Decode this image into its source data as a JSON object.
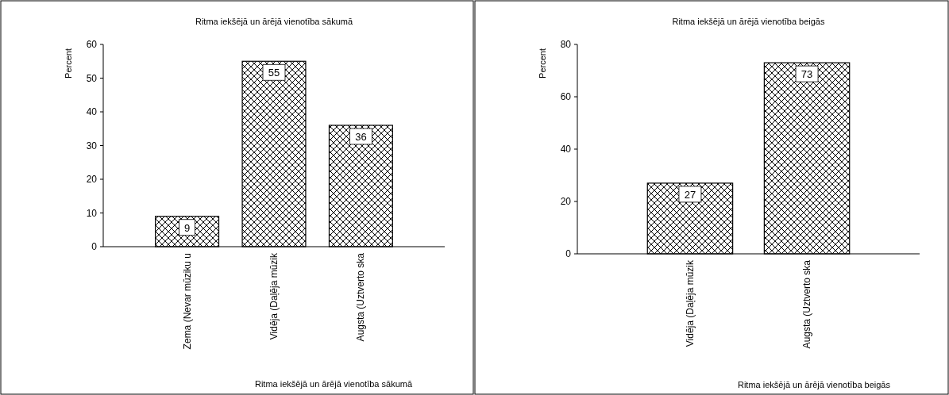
{
  "chart_data": [
    {
      "type": "bar",
      "title": "Ritma iekšējā un ārējā vienotība sākumā",
      "xlabel": "Ritma iekšējā un ārējā vienotība sākumā",
      "ylabel": "Percent",
      "categories": [
        "Zema (Nevar mūziku u",
        "Vidēja (Daļēja mūzik",
        "Augsta (Uztverto ska"
      ],
      "values": [
        9,
        55,
        36
      ],
      "color": "#000000",
      "ylim": [
        0,
        60
      ],
      "yticks": [
        0,
        10,
        20,
        30,
        40,
        50,
        60
      ],
      "data_labels": true
    },
    {
      "type": "bar",
      "title": "Ritma iekšējā un ārējā vienotība beigās",
      "xlabel": "Ritma iekšējā un ārējā vienotība beigās",
      "ylabel": "Percent",
      "categories": [
        "Vidēja (Daļēja mūzik",
        "Augsta (Uztverto ska"
      ],
      "values": [
        27,
        73
      ],
      "color": "#000000",
      "ylim": [
        0,
        80
      ],
      "yticks": [
        0,
        20,
        40,
        60,
        80
      ],
      "data_labels": true
    }
  ]
}
